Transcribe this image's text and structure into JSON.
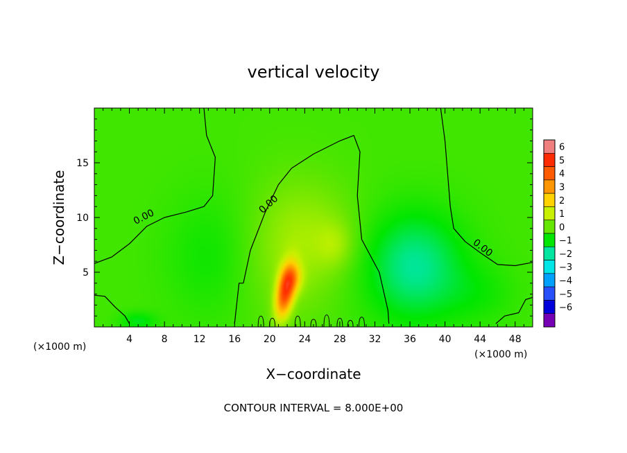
{
  "chart_data": {
    "type": "heatmap",
    "title": "vertical velocity",
    "xlabel": "X−coordinate",
    "ylabel": "Z−coordinate",
    "x_unit": "(×1000 m)",
    "y_unit": "(×1000 m)",
    "xlim": [
      0,
      50
    ],
    "ylim": [
      0,
      20
    ],
    "x_ticks": [
      4,
      8,
      12,
      16,
      20,
      24,
      28,
      32,
      36,
      40,
      44,
      48
    ],
    "x_tick_labels": [
      "4",
      "8",
      "12",
      "16",
      "20",
      "24",
      "28",
      "32",
      "36",
      "40",
      "44",
      "48"
    ],
    "y_ticks": [
      5,
      10,
      15
    ],
    "y_tick_labels": [
      "5",
      "10",
      "15"
    ],
    "colorbar": {
      "levels": [
        6,
        5,
        4,
        3,
        2,
        1,
        0,
        -1,
        -2,
        -3,
        -4,
        -5,
        -6
      ],
      "labels": [
        "6",
        "5",
        "4",
        "3",
        "2",
        "1",
        "0",
        "−1",
        "−2",
        "−3",
        "−4",
        "−5",
        "−6"
      ],
      "colors": [
        "#f08080",
        "#ff2a00",
        "#ff5a00",
        "#ff9600",
        "#ffd200",
        "#c8f000",
        "#64e600",
        "#00e600",
        "#00e6a0",
        "#00e6e6",
        "#00a0ff",
        "#2850ff",
        "#0000dc",
        "#7800b4"
      ]
    },
    "features": [
      {
        "x": 21.8,
        "z": 3.2,
        "sx": 0.7,
        "sz": 1.6,
        "amp": 4.4,
        "tilt": 0.55
      },
      {
        "x": 22.6,
        "z": 4.5,
        "sx": 0.8,
        "sz": 0.9,
        "amp": 1.6,
        "tilt": 0.0
      },
      {
        "x": 22.0,
        "z": 7.0,
        "sx": 3.5,
        "sz": 4.5,
        "amp": 0.7,
        "tilt": 0.0
      },
      {
        "x": 26.0,
        "z": 8.5,
        "sx": 3.5,
        "sz": 3.5,
        "amp": 0.5,
        "tilt": 0.0
      },
      {
        "x": 27.5,
        "z": 7.5,
        "sx": 1.5,
        "sz": 1.5,
        "amp": 0.6,
        "tilt": 0.0
      },
      {
        "x": 36.5,
        "z": 5.5,
        "sx": 4.0,
        "sz": 3.5,
        "amp": -1.6,
        "tilt": 0.0
      },
      {
        "x": 13.0,
        "z": 6.5,
        "sx": 3.5,
        "sz": 4.0,
        "amp": -0.5,
        "tilt": 0.0
      },
      {
        "x": 5.0,
        "z": 0.5,
        "sx": 1.5,
        "sz": 0.6,
        "amp": -0.8,
        "tilt": 0.0
      },
      {
        "x": 44.0,
        "z": 3.0,
        "sx": 3.0,
        "sz": 2.0,
        "amp": -0.4,
        "tilt": 0.0
      }
    ],
    "contours": [
      {
        "label": "0.00",
        "points": [
          [
            0,
            5.8
          ],
          [
            2,
            6.4
          ],
          [
            4,
            7.6
          ],
          [
            6,
            9.2
          ],
          [
            8,
            10.0
          ],
          [
            10.5,
            10.5
          ],
          [
            12.5,
            11.0
          ],
          [
            13.5,
            12.0
          ],
          [
            13.8,
            15.5
          ],
          [
            12.8,
            17.5
          ],
          [
            12.5,
            20.0
          ]
        ]
      },
      {
        "label": "0.00",
        "points": [
          [
            17,
            4.0
          ],
          [
            17.8,
            7.0
          ],
          [
            19.5,
            10.5
          ],
          [
            21,
            13.0
          ],
          [
            22.5,
            14.5
          ],
          [
            25,
            15.8
          ],
          [
            28,
            17.0
          ],
          [
            29.6,
            17.5
          ],
          [
            30.3,
            16.0
          ],
          [
            30,
            12.0
          ],
          [
            30.5,
            8.0
          ],
          [
            32.5,
            5.0
          ],
          [
            33.5,
            1.5
          ],
          [
            33.6,
            0.3
          ]
        ]
      },
      {
        "label": "0.00",
        "points": [
          [
            39.5,
            20.0
          ],
          [
            40.0,
            17.0
          ],
          [
            40.3,
            14.0
          ],
          [
            40.6,
            11.0
          ],
          [
            41.0,
            9.0
          ],
          [
            42.3,
            7.8
          ],
          [
            44.0,
            6.8
          ],
          [
            46.0,
            5.7
          ],
          [
            48.0,
            5.6
          ],
          [
            50.0,
            5.9
          ]
        ]
      },
      {
        "label": "",
        "points": [
          [
            0,
            2.9
          ],
          [
            1.2,
            2.8
          ],
          [
            2.4,
            1.8
          ],
          [
            3.5,
            1.0
          ],
          [
            4.0,
            0.3
          ]
        ]
      },
      {
        "label": "",
        "points": [
          [
            45.8,
            0.3
          ],
          [
            46.8,
            1.0
          ],
          [
            48.4,
            1.3
          ],
          [
            49.2,
            2.5
          ],
          [
            50.0,
            2.7
          ]
        ]
      },
      {
        "label": "",
        "points": [
          [
            16.0,
            0.3
          ],
          [
            16.5,
            4.0
          ],
          [
            17.0,
            4.0
          ]
        ]
      }
    ],
    "contour_labels": [
      {
        "text": "0.00",
        "x": 5.8,
        "z": 9.8,
        "rotate": -27
      },
      {
        "text": "0.00",
        "x": 20.1,
        "z": 11.0,
        "rotate": -42
      },
      {
        "text": "0.00",
        "x": 44.1,
        "z": 7.0,
        "rotate": 38
      }
    ],
    "footer": "CONTOUR INTERVAL =  8.000E+00"
  }
}
